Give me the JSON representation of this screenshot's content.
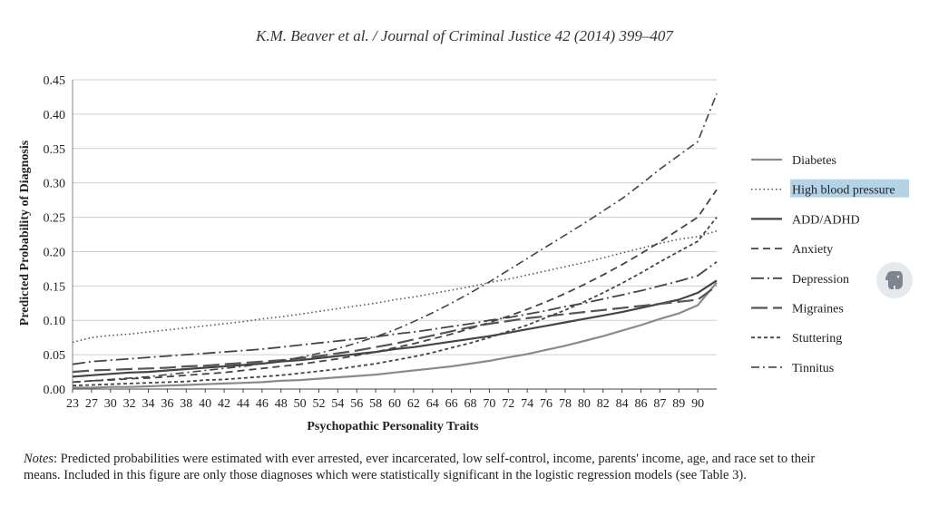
{
  "header": {
    "citation": "K.M. Beaver et al. / Journal of Criminal Justice 42 (2014) 399–407"
  },
  "notes": {
    "lead": "Notes",
    "text": ": Predicted probabilities were estimated with ever arrested, ever incarcerated, low self-control, income, parents' income, age, and race set to their means.  Included in this figure are only those diagnoses which were statistically significant in the logistic regression models (see Table 3)."
  },
  "overlay": {
    "icon": "evernote-elephant-icon"
  },
  "chart_data": {
    "type": "line",
    "title": "",
    "xlabel": "Psychopathic Personality Traits",
    "ylabel": "Predicted Probability of Diagnosis",
    "ylim": [
      0,
      0.45
    ],
    "yticks": [
      "0.00",
      "0.05",
      "0.10",
      "0.15",
      "0.20",
      "0.25",
      "0.30",
      "0.35",
      "0.40",
      "0.45"
    ],
    "xticks": [
      "23",
      "27",
      "30",
      "32",
      "34",
      "36",
      "38",
      "40",
      "42",
      "44",
      "46",
      "48",
      "50",
      "52",
      "54",
      "56",
      "58",
      "60",
      "62",
      "64",
      "66",
      "68",
      "70",
      "72",
      "74",
      "76",
      "78",
      "80",
      "82",
      "84",
      "86",
      "87",
      "89",
      "90"
    ],
    "grid": true,
    "legend_position": "right",
    "highlighted_legend_entry": "High blood pressure",
    "x": [
      23,
      27,
      30,
      32,
      34,
      36,
      38,
      40,
      42,
      44,
      46,
      48,
      50,
      52,
      54,
      56,
      58,
      60,
      62,
      64,
      66,
      68,
      70,
      72,
      74,
      76,
      78,
      80,
      82,
      84,
      86,
      87,
      89,
      90,
      91
    ],
    "series": [
      {
        "name": "Diabetes",
        "style": "solid-gray",
        "values": [
          0.002,
          0.002,
          0.003,
          0.003,
          0.004,
          0.005,
          0.006,
          0.007,
          0.008,
          0.009,
          0.01,
          0.012,
          0.013,
          0.015,
          0.017,
          0.019,
          0.021,
          0.024,
          0.027,
          0.03,
          0.033,
          0.037,
          0.041,
          0.046,
          0.051,
          0.057,
          0.063,
          0.07,
          0.077,
          0.085,
          0.093,
          0.102,
          0.11,
          0.122,
          0.155
        ]
      },
      {
        "name": "High blood pressure",
        "style": "dotted",
        "values": [
          0.068,
          0.075,
          0.078,
          0.08,
          0.083,
          0.086,
          0.089,
          0.092,
          0.095,
          0.098,
          0.102,
          0.105,
          0.109,
          0.113,
          0.117,
          0.121,
          0.125,
          0.13,
          0.134,
          0.139,
          0.144,
          0.149,
          0.155,
          0.16,
          0.166,
          0.172,
          0.178,
          0.184,
          0.191,
          0.198,
          0.205,
          0.212,
          0.218,
          0.222,
          0.23
        ]
      },
      {
        "name": "ADD/ADHD",
        "style": "solid-dark",
        "values": [
          0.018,
          0.02,
          0.022,
          0.024,
          0.025,
          0.027,
          0.029,
          0.031,
          0.033,
          0.035,
          0.037,
          0.04,
          0.042,
          0.045,
          0.048,
          0.051,
          0.054,
          0.058,
          0.061,
          0.065,
          0.069,
          0.073,
          0.077,
          0.082,
          0.087,
          0.092,
          0.097,
          0.102,
          0.107,
          0.112,
          0.118,
          0.124,
          0.13,
          0.14,
          0.158
        ]
      },
      {
        "name": "Anxiety",
        "style": "dashed",
        "values": [
          0.01,
          0.012,
          0.013,
          0.015,
          0.016,
          0.018,
          0.02,
          0.022,
          0.024,
          0.027,
          0.03,
          0.033,
          0.036,
          0.04,
          0.044,
          0.049,
          0.054,
          0.06,
          0.066,
          0.073,
          0.08,
          0.088,
          0.097,
          0.106,
          0.116,
          0.127,
          0.139,
          0.152,
          0.166,
          0.181,
          0.197,
          0.214,
          0.232,
          0.25,
          0.29
        ]
      },
      {
        "name": "Depression",
        "style": "long-dash-dot",
        "values": [
          0.036,
          0.04,
          0.042,
          0.044,
          0.046,
          0.048,
          0.05,
          0.052,
          0.054,
          0.056,
          0.058,
          0.061,
          0.064,
          0.067,
          0.07,
          0.073,
          0.076,
          0.08,
          0.083,
          0.087,
          0.091,
          0.095,
          0.1,
          0.104,
          0.109,
          0.114,
          0.12,
          0.125,
          0.131,
          0.137,
          0.143,
          0.15,
          0.157,
          0.165,
          0.185
        ]
      },
      {
        "name": "Migraines",
        "style": "long-dash",
        "values": [
          0.025,
          0.027,
          0.028,
          0.029,
          0.03,
          0.031,
          0.033,
          0.034,
          0.036,
          0.038,
          0.04,
          0.042,
          0.045,
          0.048,
          0.052,
          0.056,
          0.061,
          0.066,
          0.072,
          0.078,
          0.084,
          0.09,
          0.095,
          0.099,
          0.103,
          0.106,
          0.109,
          0.112,
          0.115,
          0.118,
          0.121,
          0.124,
          0.127,
          0.13,
          0.15
        ]
      },
      {
        "name": "Stuttering",
        "style": "short-dash",
        "values": [
          0.005,
          0.006,
          0.007,
          0.008,
          0.009,
          0.01,
          0.011,
          0.013,
          0.014,
          0.016,
          0.018,
          0.02,
          0.023,
          0.026,
          0.029,
          0.033,
          0.037,
          0.042,
          0.047,
          0.053,
          0.06,
          0.067,
          0.075,
          0.084,
          0.093,
          0.104,
          0.115,
          0.127,
          0.14,
          0.154,
          0.169,
          0.185,
          0.2,
          0.215,
          0.25
        ]
      },
      {
        "name": "Tinnitus",
        "style": "dash-dot",
        "values": [
          0.01,
          0.012,
          0.014,
          0.016,
          0.018,
          0.021,
          0.024,
          0.027,
          0.03,
          0.033,
          0.037,
          0.041,
          0.046,
          0.052,
          0.059,
          0.067,
          0.076,
          0.086,
          0.098,
          0.111,
          0.125,
          0.14,
          0.156,
          0.173,
          0.19,
          0.207,
          0.224,
          0.241,
          0.259,
          0.277,
          0.298,
          0.32,
          0.34,
          0.36,
          0.43
        ]
      }
    ]
  }
}
